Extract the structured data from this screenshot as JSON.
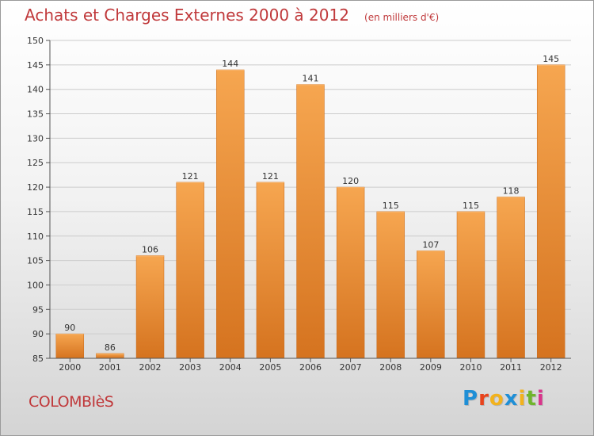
{
  "title": "Achats et Charges Externes 2000 à 2012",
  "unit": "(en milliers d'€)",
  "commune": "COLOMBIèS",
  "brand": {
    "letters": [
      "P",
      "r",
      "o",
      "x",
      "i",
      "t",
      "i"
    ],
    "colors": [
      "#1f8fd6",
      "#e8431c",
      "#f2b21d",
      "#1f8fd6",
      "#f2b21d",
      "#6fb52c",
      "#d9348b"
    ]
  },
  "colors": {
    "bar_top": "#f6a650",
    "bar_bottom": "#d5731f",
    "title": "#c0393b",
    "grid": "#cccccc"
  },
  "chart_data": {
    "type": "bar",
    "title": "Achats et Charges Externes 2000 à 2012",
    "subtitle": "(en milliers d'€)",
    "categories": [
      "2000",
      "2001",
      "2002",
      "2003",
      "2004",
      "2005",
      "2006",
      "2007",
      "2008",
      "2009",
      "2010",
      "2011",
      "2012"
    ],
    "values": [
      90,
      86,
      106,
      121,
      144,
      121,
      141,
      120,
      115,
      107,
      115,
      118,
      145
    ],
    "xlabel": "",
    "ylabel": "",
    "ylim": [
      85,
      150
    ],
    "yticks": [
      85,
      90,
      95,
      100,
      105,
      110,
      115,
      120,
      125,
      130,
      135,
      140,
      145,
      150
    ],
    "grid": true,
    "legend": "none"
  }
}
